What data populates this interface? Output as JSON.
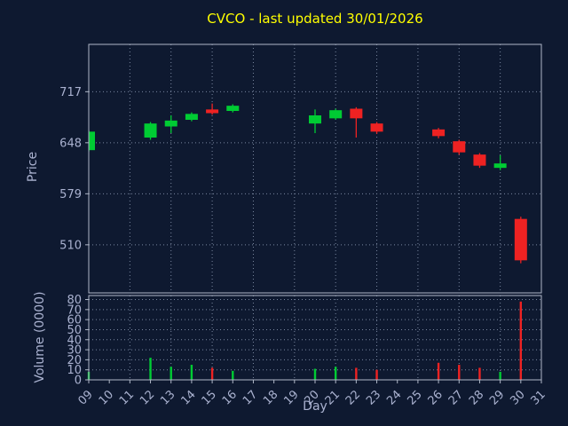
{
  "chart_data": {
    "type": "candlestick",
    "title": "CVCO - last updated 30/01/2026",
    "xlabel": "Day",
    "ylabel_price": "Price",
    "ylabel_volume": "Volume (0000)",
    "xlim": [
      9,
      31
    ],
    "price_ylim": [
      445,
      781
    ],
    "volume_ylim": [
      0,
      84
    ],
    "price_ticks": [
      717,
      648,
      579,
      510
    ],
    "volume_ticks": [
      0,
      10,
      20,
      30,
      40,
      50,
      60,
      70,
      80
    ],
    "x_tick_days": [
      9,
      10,
      11,
      12,
      13,
      14,
      15,
      16,
      17,
      18,
      19,
      20,
      21,
      22,
      23,
      24,
      25,
      26,
      27,
      28,
      29,
      30,
      31
    ],
    "x_tick_labels": [
      "09",
      "10",
      "11",
      "12",
      "13",
      "14",
      "15",
      "16",
      "17",
      "18",
      "19",
      "20",
      "21",
      "22",
      "23",
      "24",
      "25",
      "26",
      "27",
      "28",
      "29",
      "30",
      "31"
    ],
    "grid_x_step": 2,
    "candles": [
      {
        "day": 9,
        "open": 638,
        "high": 665,
        "low": 636,
        "close": 663,
        "volume": 8
      },
      {
        "day": 12,
        "open": 655,
        "high": 676,
        "low": 652,
        "close": 674,
        "volume": 22
      },
      {
        "day": 13,
        "open": 670,
        "high": 685,
        "low": 661,
        "close": 678,
        "volume": 13
      },
      {
        "day": 14,
        "open": 679,
        "high": 689,
        "low": 677,
        "close": 687,
        "volume": 15
      },
      {
        "day": 15,
        "open": 693,
        "high": 701,
        "low": 686,
        "close": 688,
        "volume": 12
      },
      {
        "day": 16,
        "open": 691,
        "high": 700,
        "low": 689,
        "close": 698,
        "volume": 9
      },
      {
        "day": 20,
        "open": 674,
        "high": 693,
        "low": 661,
        "close": 685,
        "volume": 11
      },
      {
        "day": 21,
        "open": 681,
        "high": 694,
        "low": 679,
        "close": 692,
        "volume": 13
      },
      {
        "day": 22,
        "open": 694,
        "high": 696,
        "low": 655,
        "close": 681,
        "volume": 12
      },
      {
        "day": 23,
        "open": 674,
        "high": 676,
        "low": 660,
        "close": 663,
        "volume": 10
      },
      {
        "day": 26,
        "open": 666,
        "high": 668,
        "low": 654,
        "close": 657,
        "volume": 17
      },
      {
        "day": 27,
        "open": 650,
        "high": 652,
        "low": 632,
        "close": 635,
        "volume": 15
      },
      {
        "day": 28,
        "open": 632,
        "high": 634,
        "low": 614,
        "close": 617,
        "volume": 12
      },
      {
        "day": 29,
        "open": 614,
        "high": 631,
        "low": 611,
        "close": 620,
        "volume": 8
      },
      {
        "day": 30,
        "open": 545,
        "high": 548,
        "low": 485,
        "close": 489,
        "volume": 78
      }
    ],
    "colors": {
      "background": "#0e1930",
      "title": "#ffff00",
      "tick": "#aab2d0",
      "grid": "#7a87a0",
      "spine": "#b0b8c8",
      "up": "#00cc33",
      "down": "#ee2222"
    }
  }
}
